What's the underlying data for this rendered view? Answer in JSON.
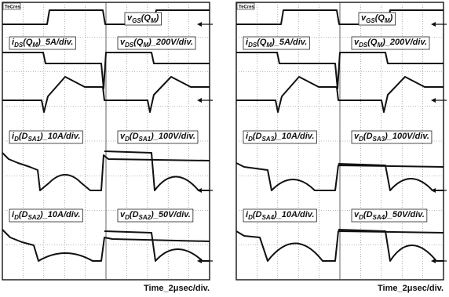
{
  "panels": [
    {
      "scope_label": "TeCres",
      "labels": [
        [
          "v",
          "GS",
          "(Q",
          "M",
          ")"
        ],
        [
          "i",
          "DS",
          "(Q",
          "M",
          ")_5A/div."
        ],
        [
          "v",
          "DS",
          "(Q",
          "M",
          ")_200V/div."
        ],
        [
          "i",
          "D",
          "(D",
          "SA1",
          ")_10A/div."
        ],
        [
          "v",
          "D",
          "(D",
          "SA1",
          ")_100V/div."
        ],
        [
          "i",
          "D",
          "(D",
          "SA2",
          ")_10A/div."
        ],
        [
          "v",
          "D",
          "(D",
          "SA2",
          ")_50V/div."
        ]
      ],
      "time": "Time_2μsec/div."
    },
    {
      "scope_label": "TeCres",
      "labels": [
        [
          "v",
          "GS",
          "(Q",
          "M",
          ")"
        ],
        [
          "i",
          "DS",
          "(Q",
          "M",
          ")_5A/div."
        ],
        [
          "v",
          "DS",
          "(Q",
          "M",
          ")_200V/div."
        ],
        [
          "i",
          "D",
          "(D",
          "SA3",
          ")_10A/div."
        ],
        [
          "v",
          "D",
          "(D",
          "SA3",
          ")_100V/div."
        ],
        [
          "i",
          "D",
          "(D",
          "SA4",
          ")_10A/div."
        ],
        [
          "v",
          "D",
          "(D",
          "SA4",
          ")_50V/div."
        ]
      ],
      "time": "Time_2μsec/div."
    }
  ]
}
